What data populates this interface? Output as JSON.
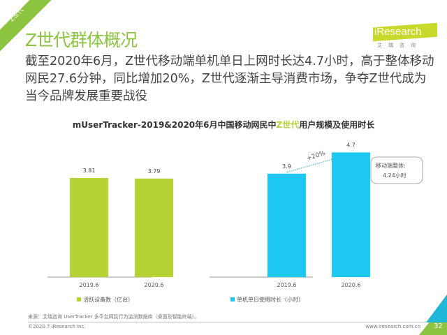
{
  "corner_tag": "Z世代",
  "title": "Z世代群体概况",
  "logo": {
    "text": "iResearch",
    "sub": "艾瑞咨询"
  },
  "summary": "截至2020年6月，Z世代移动端单机单日上网时长达4.7小时，高于整体移动网民27.6分钟，同比增加20%，Z世代逐渐主导消费市场，争夺Z世代成为当今品牌发展重要战役",
  "chart_title": {
    "prefix": "mUserTracker-2019&2020年6月中国移动网民中",
    "highlight": "Z世代",
    "suffix": "用户规模及使用时长"
  },
  "chart_data": [
    {
      "type": "bar",
      "categories": [
        "2019.6",
        "2020.6"
      ],
      "series": [
        {
          "name": "活跃设备数（亿台）",
          "values": [
            3.81,
            3.79
          ]
        }
      ],
      "ylim": [
        0,
        5.1
      ],
      "color": "#b5d334",
      "grid": false,
      "legend": "bottom"
    },
    {
      "type": "bar",
      "categories": [
        "2019.6",
        "2020.6"
      ],
      "series": [
        {
          "name": "单机单日使用时长（小时）",
          "values": [
            3.9,
            4.7
          ]
        }
      ],
      "ylim": [
        0,
        5.0
      ],
      "color": "#1fc8f0",
      "grid": false,
      "legend": "bottom",
      "annotations": {
        "growth": "+20%",
        "callout_line1": "移动端整体:",
        "callout_line2": "4.24小时"
      }
    }
  ],
  "footer": {
    "source": "来源：艾瑞咨询 UserTracker 多平台网民行为监测数据库（桌面及智能终端）。",
    "copyright": "©2020.7 iResearch Inc.",
    "url": "www.iresearch.com.cn",
    "page": "32"
  }
}
